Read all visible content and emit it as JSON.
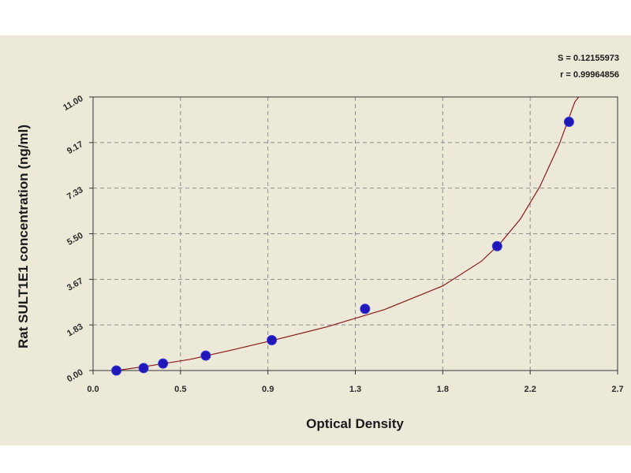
{
  "chart_data": {
    "type": "scatter",
    "xlabel": "Optical Density",
    "ylabel": "Rat SULT1E1 concentration (ng/ml)",
    "xlim": [
      0.0,
      2.7
    ],
    "ylim": [
      0.0,
      11.0
    ],
    "x_ticks": [
      "0.0",
      "0.5",
      "0.9",
      "1.3",
      "1.8",
      "2.2",
      "2.7"
    ],
    "y_ticks": [
      "0.00",
      "1.83",
      "3.67",
      "5.50",
      "7.33",
      "9.17",
      "11.00"
    ],
    "grid": true,
    "stats": [
      "S = 0.12155973",
      "r = 0.99964856"
    ],
    "points": [
      {
        "x": 0.12,
        "y": 0.0
      },
      {
        "x": 0.26,
        "y": 0.1
      },
      {
        "x": 0.36,
        "y": 0.28
      },
      {
        "x": 0.58,
        "y": 0.6
      },
      {
        "x": 0.92,
        "y": 1.22
      },
      {
        "x": 1.4,
        "y": 2.48
      },
      {
        "x": 2.08,
        "y": 5.0
      },
      {
        "x": 2.45,
        "y": 10.0
      }
    ],
    "fit_curve": [
      {
        "x": 0.12,
        "y": 0.0
      },
      {
        "x": 0.3,
        "y": 0.2
      },
      {
        "x": 0.5,
        "y": 0.45
      },
      {
        "x": 0.7,
        "y": 0.8
      },
      {
        "x": 0.92,
        "y": 1.2
      },
      {
        "x": 1.2,
        "y": 1.75
      },
      {
        "x": 1.5,
        "y": 2.45
      },
      {
        "x": 1.8,
        "y": 3.4
      },
      {
        "x": 2.0,
        "y": 4.4
      },
      {
        "x": 2.1,
        "y": 5.15
      },
      {
        "x": 2.2,
        "y": 6.1
      },
      {
        "x": 2.3,
        "y": 7.4
      },
      {
        "x": 2.4,
        "y": 9.1
      },
      {
        "x": 2.48,
        "y": 10.8
      },
      {
        "x": 2.5,
        "y": 11.0
      }
    ],
    "colors": {
      "background": "#ece9d8",
      "point": "#1f17b7",
      "curve": "#8b1a1a",
      "axis": "#333333"
    }
  }
}
